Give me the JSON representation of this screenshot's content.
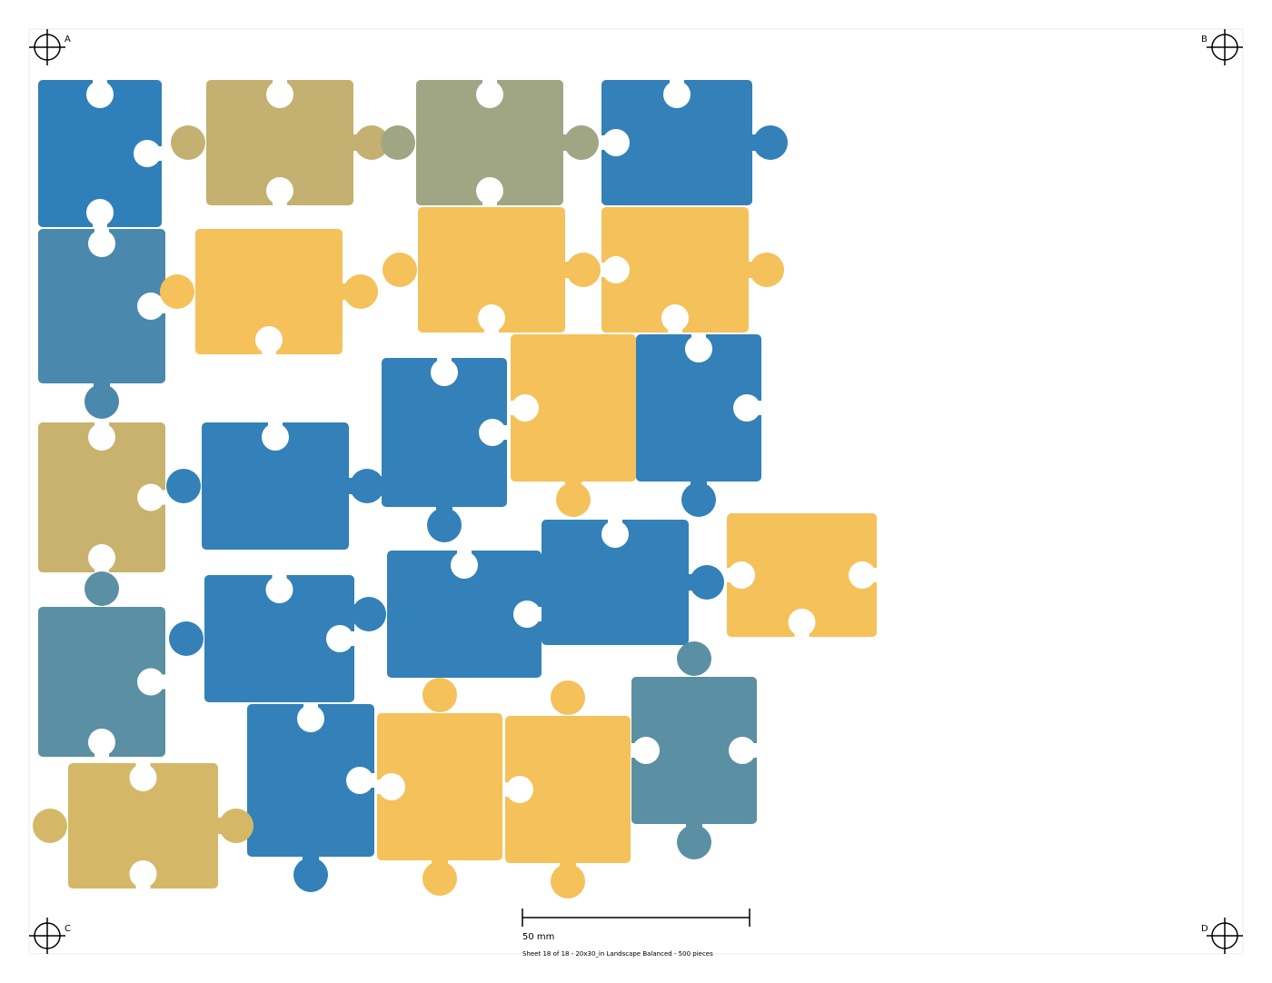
{
  "corners": {
    "a": "A",
    "b": "B",
    "c": "C",
    "d": "D"
  },
  "scale_bar": {
    "label": "50 mm"
  },
  "footer": "Sheet 18 of 18 - 20x30_in Landscape Balanced - 500 pieces"
}
